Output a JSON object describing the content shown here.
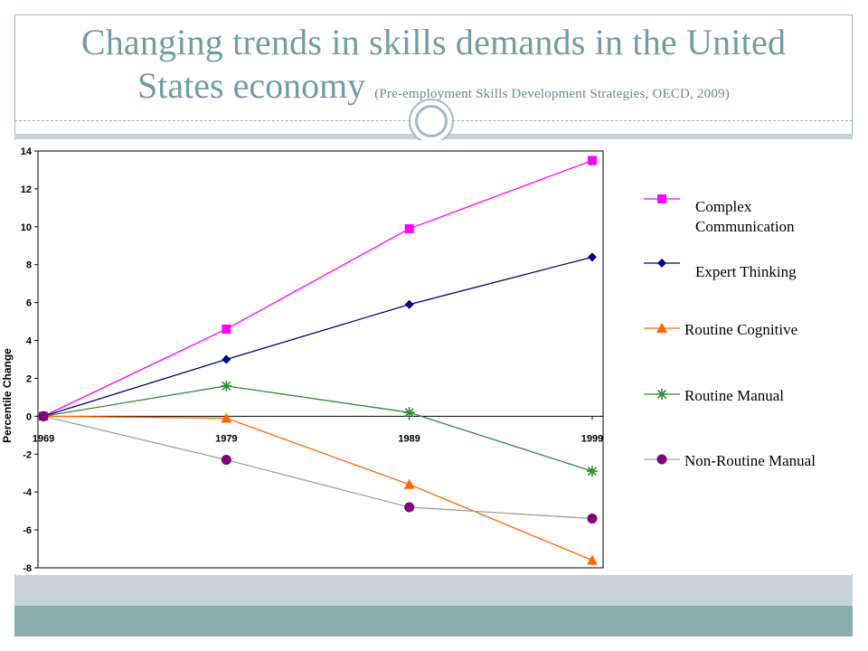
{
  "slide": {
    "title_line1": "Changing trends in skills demands in the United",
    "title_line2": "States economy",
    "title_source": "(Pre-employment Skills Development Strategies, OECD, 2009)"
  },
  "chart_data": {
    "type": "line",
    "xlabel": "",
    "ylabel": "Percentile Change",
    "x": [
      1969,
      1979,
      1989,
      1999
    ],
    "x_ticks": [
      "1969",
      "1979",
      "1989",
      "1999"
    ],
    "ylim": [
      -8,
      14
    ],
    "y_ticks": [
      "14",
      "12",
      "10",
      "8",
      "6",
      "4",
      "2",
      "0",
      "-2",
      "-4",
      "-6",
      "-8"
    ],
    "grid": false,
    "legend_position": "right",
    "series": [
      {
        "name": "Complex Communication",
        "values": [
          0,
          4.6,
          9.9,
          13.5
        ],
        "color": "#ff00ff",
        "marker": "square"
      },
      {
        "name": "Expert Thinking",
        "values": [
          0,
          3.0,
          5.9,
          8.4
        ],
        "color": "#000080",
        "marker": "diamond"
      },
      {
        "name": "Routine Cognitive",
        "values": [
          0,
          -0.1,
          -3.6,
          -7.6
        ],
        "color": "#ff6600",
        "marker": "triangle"
      },
      {
        "name": "Routine Manual",
        "values": [
          0,
          1.6,
          0.2,
          -2.9
        ],
        "color": "#2e8b2e",
        "marker": "star"
      },
      {
        "name": "Non-Routine Manual",
        "values": [
          0,
          -2.3,
          -4.8,
          -5.4
        ],
        "color": "#800080",
        "marker": "circle"
      }
    ]
  }
}
